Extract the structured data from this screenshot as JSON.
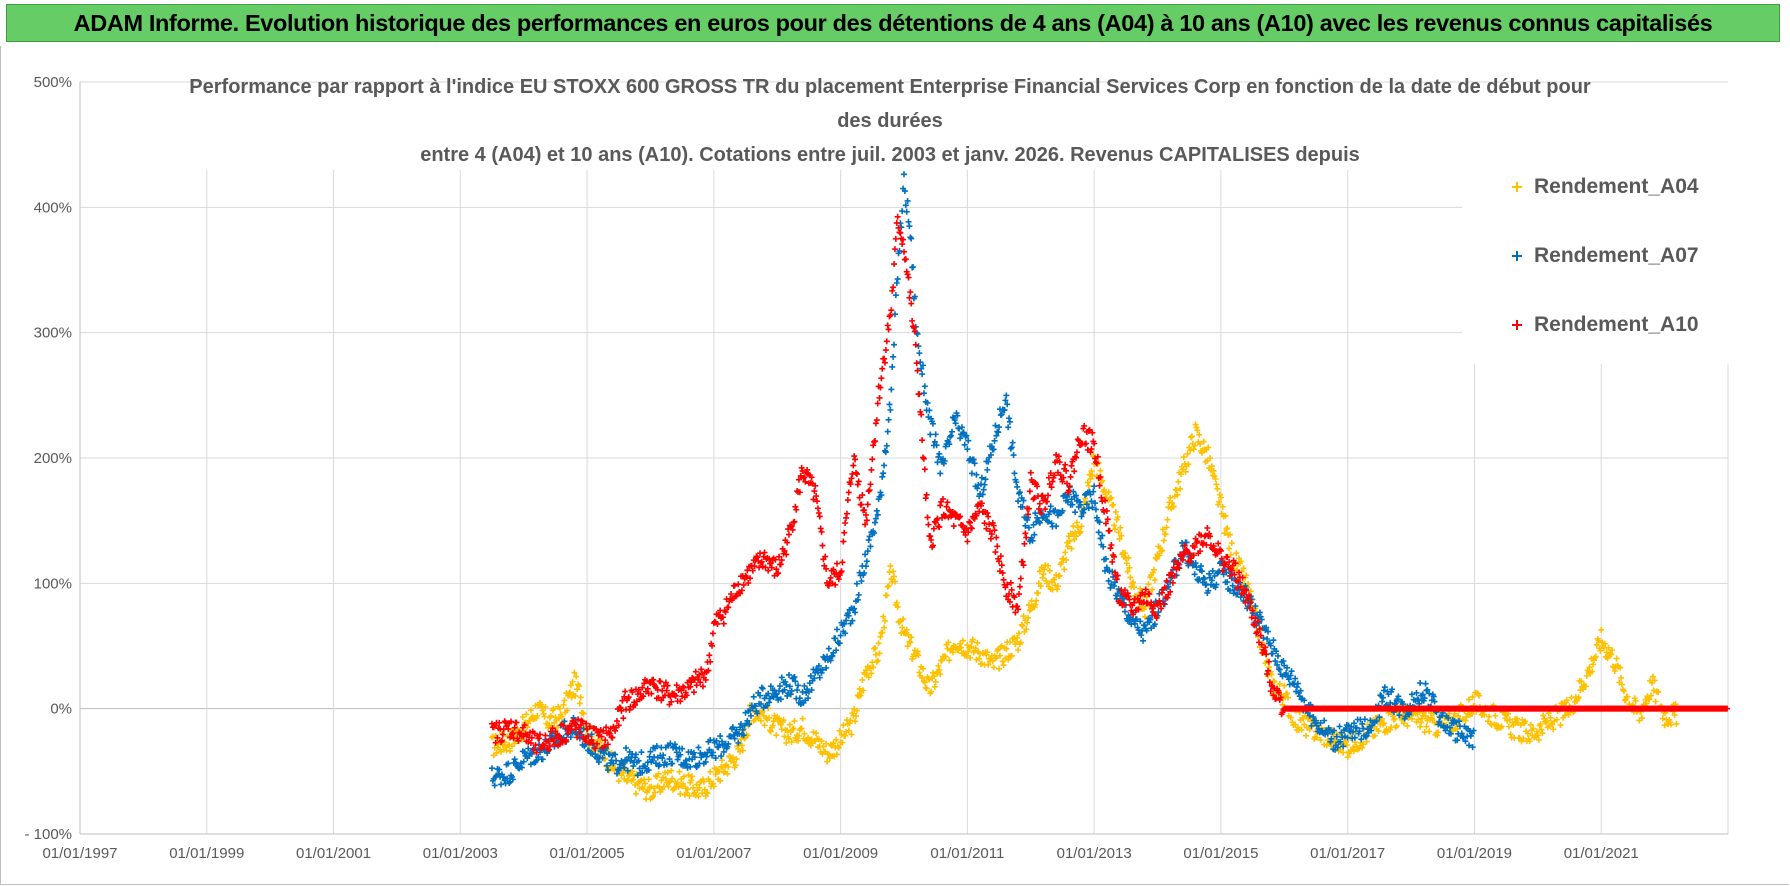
{
  "banner": {
    "title": "ADAM Informe. Evolution historique des performances en euros pour des détentions de 4 ans (A04) à 10 ans (A10) avec les revenus connus capitalisés"
  },
  "colors": {
    "banner_bg": "#66cc66",
    "A04": "#ffc000",
    "A07": "#0070c0",
    "A10": "#ff0000",
    "grid": "#d9d9d9",
    "text": "#595959"
  },
  "chart_data": {
    "type": "scatter",
    "title_lines": [
      "Performance par rapport à l'indice EU STOXX 600 GROSS TR  du placement Enterprise Financial Services Corp en fonction de la date de début pour",
      "des durées",
      "entre 4 (A04) et 10 ans (A10). Cotations entre juil. 2003 et janv. 2026. Revenus CAPITALISES depuis"
    ],
    "x_ticks": [
      "01/01/1997",
      "01/01/1999",
      "01/01/2001",
      "01/01/2003",
      "01/01/2005",
      "01/01/2007",
      "01/01/2009",
      "01/01/2011",
      "01/01/2013",
      "01/01/2015",
      "01/01/2017",
      "01/01/2019",
      "01/01/2021"
    ],
    "xlim": [
      1997.0,
      2023.0
    ],
    "y_ticks": [
      "- 100%",
      "0%",
      "100%",
      "200%",
      "300%",
      "400%",
      "500%"
    ],
    "y_tick_values": [
      -100,
      0,
      100,
      200,
      300,
      400,
      500
    ],
    "ylim": [
      -100,
      500
    ],
    "grid": true,
    "legend_position": "top-right",
    "series": [
      {
        "name": "Rendement_A04",
        "color": "#ffc000",
        "points": [
          [
            2003.5,
            -30
          ],
          [
            2003.8,
            -25
          ],
          [
            2004.0,
            -15
          ],
          [
            2004.2,
            0
          ],
          [
            2004.4,
            -10
          ],
          [
            2004.6,
            -5
          ],
          [
            2004.8,
            20
          ],
          [
            2004.9,
            10
          ],
          [
            2005.0,
            -20
          ],
          [
            2005.2,
            -30
          ],
          [
            2005.4,
            -45
          ],
          [
            2005.6,
            -55
          ],
          [
            2005.8,
            -60
          ],
          [
            2006.0,
            -65
          ],
          [
            2006.3,
            -55
          ],
          [
            2006.5,
            -60
          ],
          [
            2006.8,
            -65
          ],
          [
            2007.0,
            -55
          ],
          [
            2007.2,
            -45
          ],
          [
            2007.4,
            -35
          ],
          [
            2007.6,
            0
          ],
          [
            2007.8,
            -5
          ],
          [
            2008.0,
            -15
          ],
          [
            2008.2,
            -20
          ],
          [
            2008.4,
            -15
          ],
          [
            2008.6,
            -25
          ],
          [
            2008.8,
            -35
          ],
          [
            2009.0,
            -25
          ],
          [
            2009.2,
            -10
          ],
          [
            2009.4,
            30
          ],
          [
            2009.6,
            45
          ],
          [
            2009.8,
            110
          ],
          [
            2009.9,
            80
          ],
          [
            2010.0,
            60
          ],
          [
            2010.2,
            40
          ],
          [
            2010.4,
            15
          ],
          [
            2010.6,
            35
          ],
          [
            2010.8,
            55
          ],
          [
            2011.0,
            50
          ],
          [
            2011.2,
            45
          ],
          [
            2011.4,
            35
          ],
          [
            2011.6,
            45
          ],
          [
            2011.8,
            55
          ],
          [
            2012.0,
            80
          ],
          [
            2012.2,
            110
          ],
          [
            2012.4,
            100
          ],
          [
            2012.6,
            130
          ],
          [
            2012.8,
            150
          ],
          [
            2013.0,
            200
          ],
          [
            2013.2,
            170
          ],
          [
            2013.4,
            140
          ],
          [
            2013.6,
            100
          ],
          [
            2013.8,
            80
          ],
          [
            2014.0,
            120
          ],
          [
            2014.2,
            160
          ],
          [
            2014.4,
            190
          ],
          [
            2014.6,
            220
          ],
          [
            2014.8,
            200
          ],
          [
            2015.0,
            160
          ],
          [
            2015.2,
            120
          ],
          [
            2015.4,
            100
          ],
          [
            2015.6,
            60
          ],
          [
            2015.8,
            20
          ],
          [
            2016.0,
            10
          ],
          [
            2016.2,
            -10
          ],
          [
            2016.4,
            -15
          ],
          [
            2016.6,
            -20
          ],
          [
            2016.8,
            -25
          ],
          [
            2017.0,
            -30
          ],
          [
            2017.3,
            -20
          ],
          [
            2017.6,
            -10
          ],
          [
            2017.9,
            -5
          ],
          [
            2018.2,
            -10
          ],
          [
            2018.5,
            -15
          ],
          [
            2018.8,
            -5
          ],
          [
            2019.0,
            5
          ],
          [
            2019.3,
            -5
          ],
          [
            2019.6,
            -15
          ],
          [
            2019.9,
            -20
          ],
          [
            2020.2,
            -10
          ],
          [
            2020.5,
            0
          ],
          [
            2020.8,
            30
          ],
          [
            2021.0,
            55
          ],
          [
            2021.2,
            40
          ],
          [
            2021.4,
            10
          ],
          [
            2021.6,
            -5
          ],
          [
            2021.8,
            20
          ],
          [
            2022.0,
            -5
          ],
          [
            2022.2,
            -5
          ]
        ]
      },
      {
        "name": "Rendement_A07",
        "color": "#0070c0",
        "points": [
          [
            2003.5,
            -55
          ],
          [
            2003.8,
            -50
          ],
          [
            2004.0,
            -40
          ],
          [
            2004.2,
            -35
          ],
          [
            2004.4,
            -30
          ],
          [
            2004.6,
            -20
          ],
          [
            2004.8,
            -15
          ],
          [
            2005.0,
            -25
          ],
          [
            2005.2,
            -35
          ],
          [
            2005.4,
            -45
          ],
          [
            2005.6,
            -40
          ],
          [
            2005.8,
            -45
          ],
          [
            2006.0,
            -40
          ],
          [
            2006.3,
            -35
          ],
          [
            2006.6,
            -40
          ],
          [
            2006.9,
            -35
          ],
          [
            2007.1,
            -30
          ],
          [
            2007.4,
            -20
          ],
          [
            2007.6,
            0
          ],
          [
            2007.8,
            10
          ],
          [
            2008.0,
            15
          ],
          [
            2008.2,
            20
          ],
          [
            2008.4,
            10
          ],
          [
            2008.6,
            25
          ],
          [
            2008.8,
            40
          ],
          [
            2009.0,
            60
          ],
          [
            2009.2,
            80
          ],
          [
            2009.4,
            120
          ],
          [
            2009.6,
            160
          ],
          [
            2009.8,
            250
          ],
          [
            2009.9,
            350
          ],
          [
            2010.0,
            420
          ],
          [
            2010.1,
            380
          ],
          [
            2010.2,
            300
          ],
          [
            2010.4,
            230
          ],
          [
            2010.6,
            190
          ],
          [
            2010.8,
            230
          ],
          [
            2011.0,
            210
          ],
          [
            2011.2,
            170
          ],
          [
            2011.4,
            210
          ],
          [
            2011.6,
            250
          ],
          [
            2011.8,
            170
          ],
          [
            2012.0,
            140
          ],
          [
            2012.2,
            160
          ],
          [
            2012.4,
            150
          ],
          [
            2012.6,
            170
          ],
          [
            2012.8,
            160
          ],
          [
            2013.0,
            170
          ],
          [
            2013.2,
            110
          ],
          [
            2013.4,
            90
          ],
          [
            2013.6,
            70
          ],
          [
            2013.8,
            60
          ],
          [
            2014.0,
            80
          ],
          [
            2014.2,
            100
          ],
          [
            2014.4,
            130
          ],
          [
            2014.6,
            110
          ],
          [
            2014.8,
            100
          ],
          [
            2015.0,
            110
          ],
          [
            2015.2,
            100
          ],
          [
            2015.4,
            90
          ],
          [
            2015.6,
            70
          ],
          [
            2015.8,
            50
          ],
          [
            2016.0,
            30
          ],
          [
            2016.2,
            20
          ],
          [
            2016.4,
            -5
          ],
          [
            2016.6,
            -15
          ],
          [
            2016.8,
            -25
          ],
          [
            2017.0,
            -20
          ],
          [
            2017.3,
            -15
          ],
          [
            2017.6,
            10
          ],
          [
            2017.9,
            0
          ],
          [
            2018.2,
            15
          ],
          [
            2018.5,
            -10
          ],
          [
            2018.8,
            -20
          ],
          [
            2019.0,
            -25
          ]
        ]
      },
      {
        "name": "Rendement_A10",
        "color": "#ff0000",
        "points": [
          [
            2003.5,
            -20
          ],
          [
            2003.8,
            -15
          ],
          [
            2004.0,
            -20
          ],
          [
            2004.2,
            -30
          ],
          [
            2004.4,
            -25
          ],
          [
            2004.6,
            -20
          ],
          [
            2004.8,
            -15
          ],
          [
            2005.0,
            -20
          ],
          [
            2005.2,
            -25
          ],
          [
            2005.4,
            -20
          ],
          [
            2005.6,
            5
          ],
          [
            2005.8,
            10
          ],
          [
            2006.0,
            20
          ],
          [
            2006.3,
            10
          ],
          [
            2006.6,
            15
          ],
          [
            2006.9,
            30
          ],
          [
            2007.0,
            65
          ],
          [
            2007.2,
            80
          ],
          [
            2007.4,
            100
          ],
          [
            2007.6,
            110
          ],
          [
            2007.8,
            120
          ],
          [
            2008.0,
            110
          ],
          [
            2008.2,
            140
          ],
          [
            2008.4,
            190
          ],
          [
            2008.6,
            170
          ],
          [
            2008.8,
            100
          ],
          [
            2009.0,
            110
          ],
          [
            2009.2,
            200
          ],
          [
            2009.4,
            150
          ],
          [
            2009.6,
            250
          ],
          [
            2009.8,
            320
          ],
          [
            2009.9,
            390
          ],
          [
            2010.0,
            370
          ],
          [
            2010.2,
            280
          ],
          [
            2010.4,
            130
          ],
          [
            2010.6,
            160
          ],
          [
            2010.8,
            150
          ],
          [
            2011.0,
            140
          ],
          [
            2011.2,
            160
          ],
          [
            2011.4,
            140
          ],
          [
            2011.6,
            100
          ],
          [
            2011.8,
            80
          ],
          [
            2012.0,
            180
          ],
          [
            2012.2,
            160
          ],
          [
            2012.4,
            200
          ],
          [
            2012.6,
            180
          ],
          [
            2012.8,
            220
          ],
          [
            2013.0,
            210
          ],
          [
            2013.2,
            150
          ],
          [
            2013.4,
            90
          ],
          [
            2013.6,
            80
          ],
          [
            2013.8,
            90
          ],
          [
            2014.0,
            80
          ],
          [
            2014.2,
            100
          ],
          [
            2014.4,
            120
          ],
          [
            2014.6,
            130
          ],
          [
            2014.8,
            140
          ],
          [
            2015.0,
            120
          ],
          [
            2015.2,
            110
          ],
          [
            2015.4,
            90
          ],
          [
            2015.6,
            60
          ],
          [
            2015.8,
            20
          ],
          [
            2016.0,
            0
          ],
          [
            2016.5,
            0
          ],
          [
            2017.0,
            0
          ],
          [
            2017.5,
            0
          ],
          [
            2018.0,
            0
          ],
          [
            2018.5,
            0
          ],
          [
            2019.0,
            0
          ],
          [
            2019.5,
            0
          ],
          [
            2020.0,
            0
          ],
          [
            2020.5,
            0
          ],
          [
            2021.0,
            0
          ],
          [
            2021.5,
            0
          ],
          [
            2022.0,
            0
          ],
          [
            2022.5,
            0
          ],
          [
            2023.0,
            0
          ]
        ]
      }
    ]
  }
}
